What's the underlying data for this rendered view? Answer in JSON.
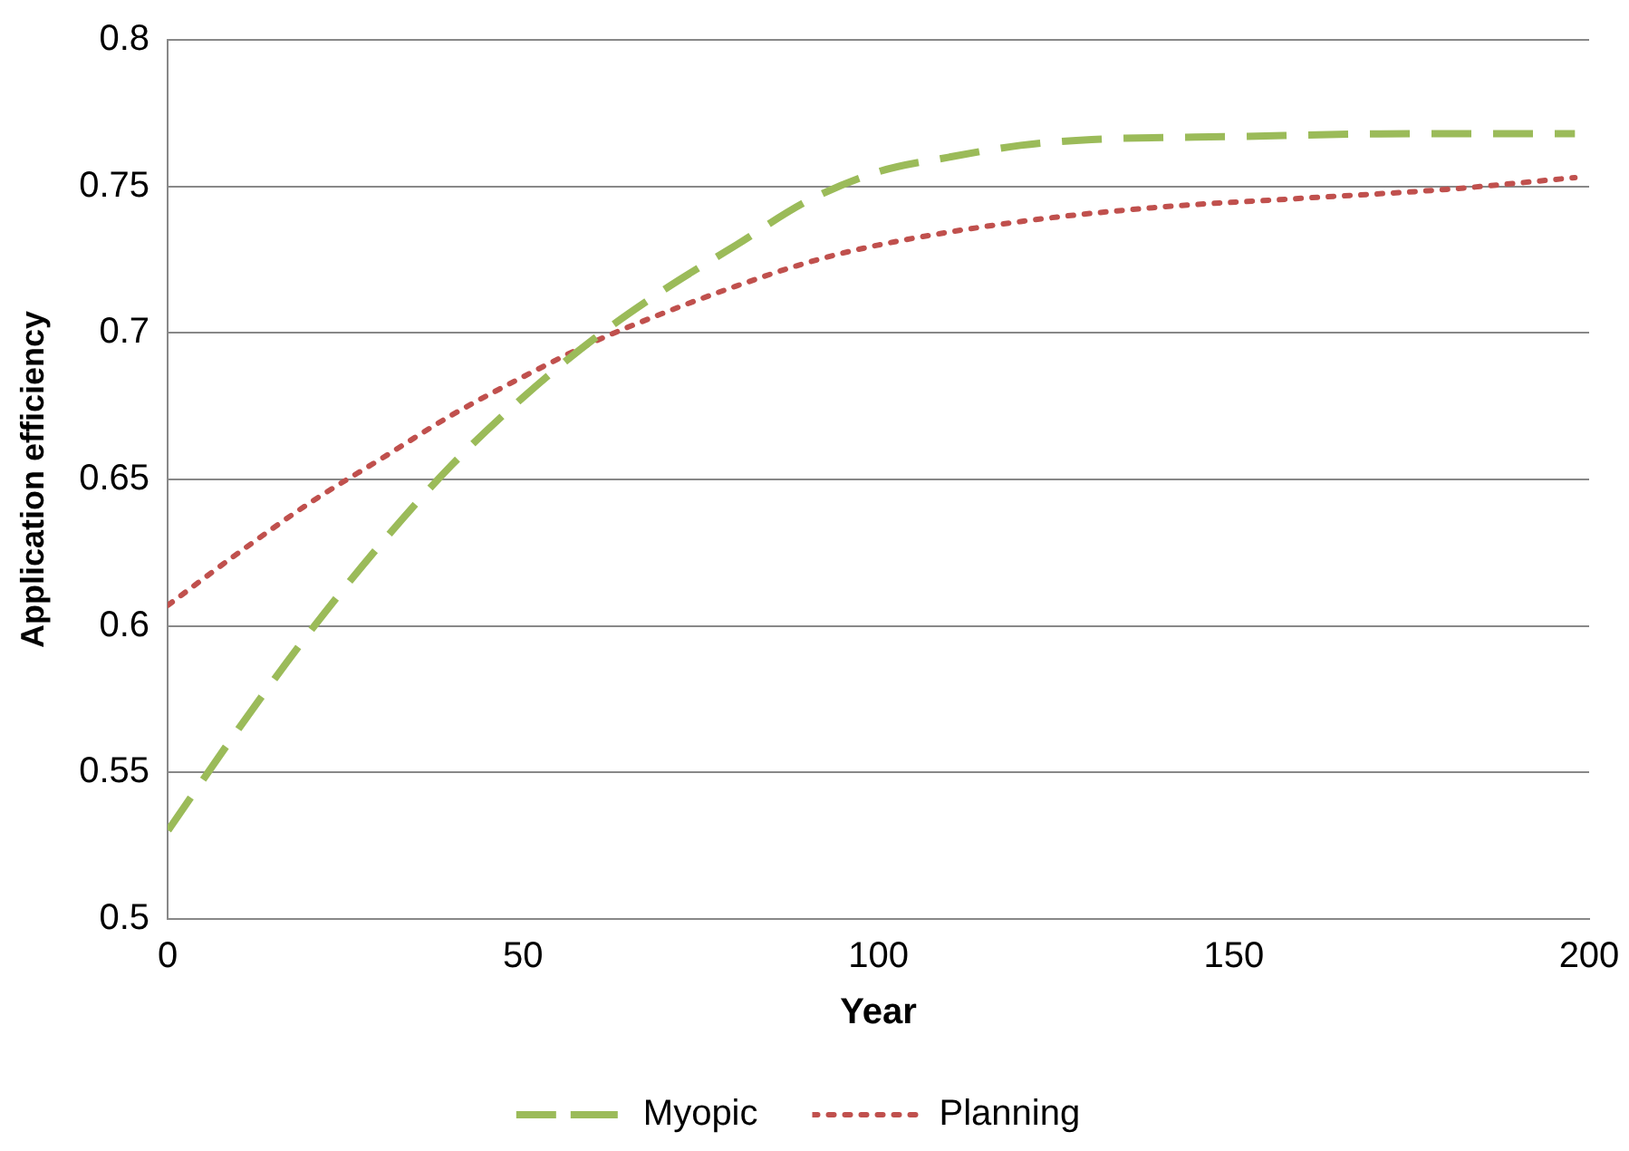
{
  "chart_data": {
    "type": "line",
    "xlabel": "Year",
    "ylabel": "Application efficiency",
    "xlim": [
      0,
      200
    ],
    "xticks": [
      0,
      50,
      100,
      150,
      200
    ],
    "ylim": [
      0.5,
      0.8
    ],
    "yticks": [
      0.5,
      0.55,
      0.6,
      0.65,
      0.7,
      0.75,
      0.8
    ],
    "grid": "y",
    "legend": "bottom",
    "marker": "none",
    "series": [
      {
        "name": "Myopic",
        "color": "#9bbb59",
        "line_style": "dashed",
        "x": [
          0,
          10,
          20,
          30,
          40,
          50,
          60,
          70,
          80,
          90,
          100,
          110,
          120,
          130,
          150,
          175,
          198
        ],
        "values": [
          0.53,
          0.565,
          0.598,
          0.628,
          0.655,
          0.678,
          0.698,
          0.715,
          0.73,
          0.745,
          0.755,
          0.76,
          0.764,
          0.766,
          0.767,
          0.768,
          0.768
        ]
      },
      {
        "name": "Planning",
        "color": "#c0504d",
        "line_style": "dotted",
        "x": [
          0,
          10,
          20,
          30,
          40,
          50,
          60,
          70,
          80,
          90,
          100,
          120,
          140,
          160,
          180,
          198
        ],
        "values": [
          0.607,
          0.625,
          0.642,
          0.657,
          0.672,
          0.685,
          0.697,
          0.707,
          0.716,
          0.724,
          0.73,
          0.738,
          0.743,
          0.746,
          0.749,
          0.753
        ]
      }
    ]
  }
}
